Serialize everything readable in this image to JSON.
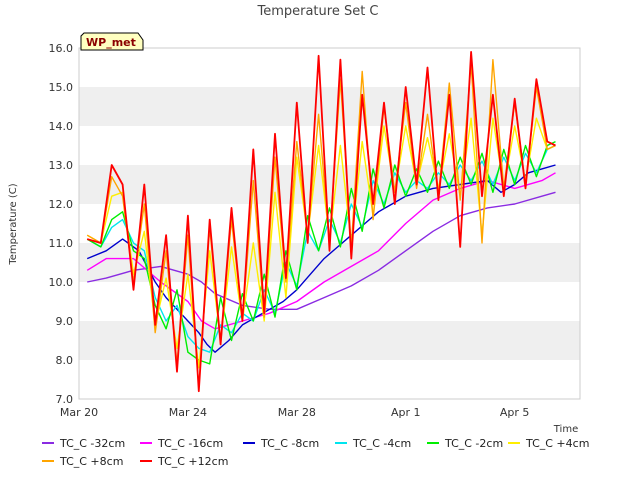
{
  "chart_data": {
    "type": "line",
    "title": "Temperature Set C",
    "xlabel": "Time",
    "ylabel": "Temperature (C)",
    "badge": "WP_met",
    "x_unit": "days since Mar 20",
    "xlim": [
      0,
      18.4
    ],
    "ylim": [
      7.0,
      16.0
    ],
    "y_ticks": [
      7.0,
      8.0,
      9.0,
      10.0,
      11.0,
      12.0,
      13.0,
      14.0,
      15.0,
      16.0
    ],
    "x_ticks": [
      {
        "label": "Mar 20",
        "x": 0
      },
      {
        "label": "Mar 24",
        "x": 4
      },
      {
        "label": "Mar 28",
        "x": 8
      },
      {
        "label": "Apr 1",
        "x": 12
      },
      {
        "label": "Apr 5",
        "x": 16
      }
    ],
    "grid": "horizontal bands",
    "legend_position": "bottom",
    "series": [
      {
        "name": "TC_C -32cm",
        "color": "#8a2be2",
        "x": [
          0.3,
          1,
          2,
          3,
          4,
          4.5,
          5,
          6,
          7,
          8,
          9,
          10,
          11,
          12,
          13,
          14,
          15,
          16,
          17,
          17.5
        ],
        "y": [
          10.0,
          10.1,
          10.3,
          10.4,
          10.2,
          10.0,
          9.7,
          9.4,
          9.3,
          9.3,
          9.6,
          9.9,
          10.3,
          10.8,
          11.3,
          11.7,
          11.9,
          12.0,
          12.2,
          12.3
        ]
      },
      {
        "name": "TC_C -16cm",
        "color": "#ff00ff",
        "x": [
          0.3,
          1,
          2,
          3,
          4,
          4.5,
          5,
          6,
          7,
          8,
          9,
          10,
          11,
          12,
          13,
          14,
          15,
          16,
          17,
          17.5
        ],
        "y": [
          10.3,
          10.6,
          10.6,
          10.0,
          9.5,
          9.0,
          8.8,
          9.0,
          9.2,
          9.5,
          10.0,
          10.4,
          10.8,
          11.5,
          12.1,
          12.4,
          12.6,
          12.4,
          12.6,
          12.8
        ]
      },
      {
        "name": "TC_C -8cm",
        "color": "#0000cd",
        "x": [
          0.3,
          1,
          1.6,
          2.2,
          2.8,
          3.2,
          3.6,
          4.0,
          4.4,
          4.7,
          5.0,
          5.5,
          6.0,
          6.5,
          7.0,
          7.5,
          8.0,
          8.5,
          9.0,
          9.5,
          10.0,
          10.5,
          11.0,
          11.5,
          12.0,
          13.0,
          14.0,
          15.0,
          15.5,
          16.0,
          16.5,
          17.0,
          17.5
        ],
        "y": [
          10.6,
          10.8,
          11.1,
          10.8,
          10.0,
          9.6,
          9.3,
          9.0,
          8.7,
          8.4,
          8.2,
          8.5,
          8.9,
          9.1,
          9.3,
          9.5,
          9.8,
          10.2,
          10.6,
          10.9,
          11.2,
          11.5,
          11.8,
          12.0,
          12.2,
          12.4,
          12.5,
          12.6,
          12.3,
          12.5,
          12.8,
          12.9,
          13.0
        ]
      },
      {
        "name": "TC_C -4cm",
        "color": "#00e5ee",
        "x": [
          0.3,
          0.8,
          1.2,
          1.6,
          2.0,
          2.4,
          2.8,
          3.2,
          3.6,
          4.0,
          4.4,
          4.8,
          5.2,
          5.6,
          6.0,
          6.4,
          6.8,
          7.2,
          7.6,
          8.0,
          8.4,
          8.8,
          9.2,
          9.6,
          10.0,
          10.4,
          10.8,
          11.2,
          11.6,
          12.0,
          12.4,
          12.8,
          13.2,
          13.6,
          14.0,
          14.4,
          14.8,
          15.2,
          15.6,
          16.0,
          16.4,
          16.8,
          17.2,
          17.5
        ],
        "y": [
          11.1,
          10.9,
          11.4,
          11.6,
          11.0,
          10.8,
          9.6,
          9.0,
          9.4,
          8.6,
          8.3,
          8.2,
          8.9,
          8.7,
          9.2,
          9.0,
          9.8,
          9.2,
          10.5,
          9.9,
          11.3,
          10.8,
          11.6,
          11.0,
          12.0,
          11.4,
          12.6,
          12.0,
          12.8,
          12.3,
          12.6,
          12.4,
          12.8,
          12.5,
          13.0,
          12.6,
          13.1,
          12.5,
          13.2,
          12.6,
          13.3,
          12.8,
          13.4,
          13.5
        ]
      },
      {
        "name": "TC_C -2cm",
        "color": "#00ee00",
        "x": [
          0.3,
          0.8,
          1.2,
          1.6,
          2.0,
          2.4,
          2.8,
          3.2,
          3.6,
          4.0,
          4.4,
          4.8,
          5.2,
          5.6,
          6.0,
          6.4,
          6.8,
          7.2,
          7.6,
          8.0,
          8.4,
          8.8,
          9.2,
          9.6,
          10.0,
          10.4,
          10.8,
          11.2,
          11.6,
          12.0,
          12.4,
          12.8,
          13.2,
          13.6,
          14.0,
          14.4,
          14.8,
          15.2,
          15.6,
          16.0,
          16.4,
          16.8,
          17.2,
          17.5
        ],
        "y": [
          11.1,
          10.9,
          11.6,
          11.8,
          10.8,
          10.6,
          9.4,
          8.8,
          9.8,
          8.2,
          8.0,
          7.9,
          9.6,
          8.5,
          9.7,
          9.0,
          10.2,
          9.1,
          10.8,
          9.8,
          11.7,
          10.8,
          11.9,
          10.9,
          12.4,
          11.3,
          12.9,
          11.9,
          13.0,
          12.2,
          12.9,
          12.3,
          13.1,
          12.4,
          13.2,
          12.5,
          13.3,
          12.3,
          13.4,
          12.5,
          13.5,
          12.7,
          13.5,
          13.6
        ]
      },
      {
        "name": "TC_C +4cm",
        "color": "#ffee00",
        "x": [
          0.3,
          0.8,
          1.2,
          1.6,
          2.0,
          2.4,
          2.8,
          3.2,
          3.6,
          4.0,
          4.4,
          4.8,
          5.2,
          5.6,
          6.0,
          6.4,
          6.8,
          7.2,
          7.6,
          8.0,
          8.4,
          8.8,
          9.2,
          9.6,
          10.0,
          10.4,
          10.8,
          11.2,
          11.6,
          12.0,
          12.4,
          12.8,
          13.2,
          13.6,
          14.0,
          14.4,
          14.8,
          15.2,
          15.6,
          16.0,
          16.4,
          16.8,
          17.2,
          17.5
        ],
        "y": [
          11.2,
          11.0,
          12.2,
          12.3,
          10.2,
          11.3,
          8.9,
          10.1,
          8.3,
          10.2,
          7.8,
          10.8,
          8.5,
          10.9,
          9.0,
          11.0,
          9.0,
          12.3,
          9.6,
          13.2,
          11.2,
          13.5,
          11.1,
          13.5,
          11.0,
          13.6,
          11.7,
          14.0,
          12.3,
          14.0,
          12.5,
          13.7,
          12.4,
          13.8,
          12.2,
          14.2,
          11.2,
          14.2,
          12.4,
          14.0,
          12.6,
          14.2,
          13.4,
          13.5
        ]
      },
      {
        "name": "TC_C +8cm",
        "color": "#ffa500",
        "x": [
          0.3,
          0.8,
          1.2,
          1.6,
          2.0,
          2.4,
          2.8,
          3.2,
          3.6,
          4.0,
          4.4,
          4.8,
          5.2,
          5.6,
          6.0,
          6.4,
          6.8,
          7.2,
          7.6,
          8.0,
          8.4,
          8.8,
          9.2,
          9.6,
          10.0,
          10.4,
          10.8,
          11.2,
          11.6,
          12.0,
          12.4,
          12.8,
          13.2,
          13.6,
          14.0,
          14.4,
          14.8,
          15.2,
          15.6,
          16.0,
          16.4,
          16.8,
          17.2,
          17.5
        ],
        "y": [
          11.2,
          11.0,
          12.7,
          12.2,
          10.0,
          12.0,
          8.7,
          10.8,
          7.9,
          11.2,
          7.3,
          11.4,
          8.4,
          11.6,
          9.0,
          12.6,
          9.1,
          13.2,
          10.0,
          13.6,
          11.2,
          14.3,
          11.0,
          15.2,
          10.9,
          15.4,
          11.6,
          14.5,
          12.3,
          14.6,
          12.4,
          14.3,
          12.2,
          15.1,
          12.1,
          15.6,
          11.0,
          15.7,
          12.4,
          14.6,
          12.5,
          15.0,
          13.4,
          13.5
        ]
      },
      {
        "name": "TC_C +12cm",
        "color": "#ff0000",
        "x": [
          0.3,
          0.8,
          1.2,
          1.6,
          2.0,
          2.4,
          2.8,
          3.2,
          3.6,
          4.0,
          4.4,
          4.8,
          5.2,
          5.6,
          6.0,
          6.4,
          6.8,
          7.2,
          7.6,
          8.0,
          8.4,
          8.8,
          9.2,
          9.6,
          10.0,
          10.4,
          10.8,
          11.2,
          11.6,
          12.0,
          12.4,
          12.8,
          13.2,
          13.6,
          14.0,
          14.4,
          14.8,
          15.2,
          15.6,
          16.0,
          16.4,
          16.8,
          17.2,
          17.5
        ],
        "y": [
          11.1,
          11.0,
          13.0,
          12.5,
          9.8,
          12.5,
          8.9,
          11.2,
          7.7,
          11.7,
          7.2,
          11.6,
          8.4,
          11.9,
          9.0,
          13.4,
          9.2,
          13.8,
          10.1,
          14.6,
          11.0,
          15.8,
          10.8,
          15.7,
          10.6,
          14.8,
          12.0,
          14.6,
          12.0,
          15.0,
          12.5,
          15.5,
          12.1,
          14.8,
          10.9,
          15.9,
          12.2,
          14.8,
          12.2,
          14.7,
          12.4,
          15.2,
          13.6,
          13.5
        ]
      }
    ]
  }
}
